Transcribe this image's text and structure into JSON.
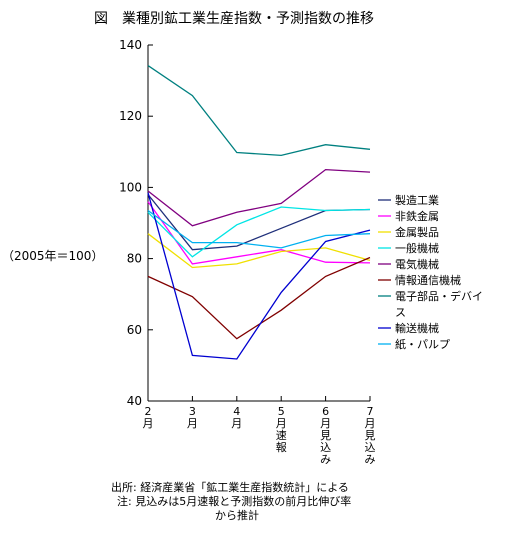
{
  "chart_data": {
    "type": "line",
    "title": "図　業種別鉱工業生産指数・予測指数の推移",
    "ylabel": "（2005年＝100）",
    "ylim": [
      40,
      140
    ],
    "yticks": [
      40,
      60,
      80,
      100,
      120,
      140
    ],
    "categories": [
      [
        "2",
        "月"
      ],
      [
        "3",
        "月"
      ],
      [
        "4",
        "月"
      ],
      [
        "5",
        "月",
        "速",
        "報"
      ],
      [
        "6",
        "月",
        "見",
        "込",
        "み"
      ],
      [
        "7",
        "月",
        "見",
        "込",
        "み"
      ]
    ],
    "legend_position": "right",
    "series": [
      {
        "name": "製造工業",
        "color": "#1f2f7a",
        "values": [
          98,
          82.5,
          83.5,
          88.5,
          93.5,
          93.8
        ]
      },
      {
        "name": "非鉄金属",
        "color": "#ff00ff",
        "values": [
          96,
          78.5,
          80.5,
          82.5,
          79,
          78.8
        ]
      },
      {
        "name": "金属製品",
        "color": "#f0e000",
        "values": [
          87,
          77.5,
          78.5,
          82,
          83,
          79.5
        ]
      },
      {
        "name": "一般機械",
        "color": "#00e5e5",
        "values": [
          93,
          80.5,
          89.5,
          94.5,
          93.5,
          93.8
        ]
      },
      {
        "name": "電気機械",
        "color": "#800080",
        "values": [
          99,
          89.2,
          93,
          95.5,
          105,
          104.3
        ]
      },
      {
        "name": "情報通信機械",
        "color": "#800000",
        "values": [
          75,
          69.3,
          57.5,
          65.5,
          75,
          80.3
        ]
      },
      {
        "name": "電子部品・デバイス",
        "color": "#008080",
        "values": [
          134.2,
          125.8,
          109.8,
          109,
          112,
          110.7
        ]
      },
      {
        "name": "輸送機械",
        "color": "#0000d0",
        "values": [
          98.5,
          52.8,
          51.8,
          70.5,
          84.8,
          88
        ]
      },
      {
        "name": "紙・パルプ",
        "color": "#00b0f0",
        "values": [
          93.5,
          84.5,
          84.5,
          83,
          86.5,
          87
        ]
      }
    ]
  },
  "notes": [
    "出所: 経済産業省「鉱工業生産指数統計」による",
    "注: 見込みは5月速報と予測指数の前月比伸び率",
    "から推計"
  ]
}
